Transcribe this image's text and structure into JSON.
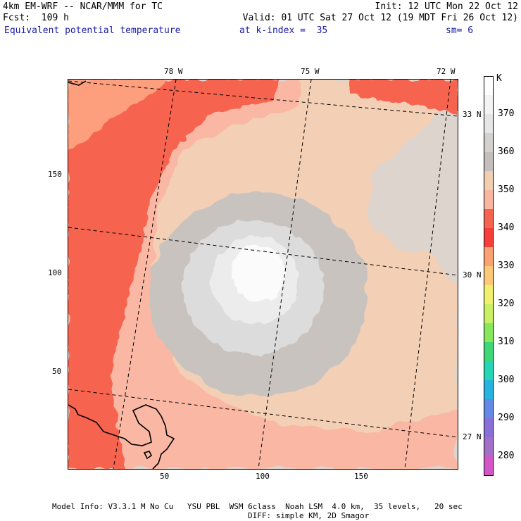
{
  "header": {
    "line1_left": "4km EM-WRF -- NCAR/MMM for TC",
    "line1_right": "Init: 12 UTC Mon 22 Oct 12",
    "line2_left": "Fcst:  109 h",
    "line2_right": "Valid: 01 UTC Sat 27 Oct 12 (19 MDT Fri 26 Oct 12)",
    "field_name": "Equivalent potential temperature",
    "level_text": "at k-index =  35",
    "smooth_text": "sm= 6"
  },
  "map": {
    "top_lon_labels": [
      "78 W",
      "75 W",
      "72 W"
    ],
    "right_lat_labels": [
      "33 N",
      "30 N",
      "27 N"
    ],
    "left_axis_ticks": [
      "150",
      "100",
      "50"
    ],
    "bottom_axis_ticks": [
      "50",
      "100",
      "150"
    ],
    "colors": {
      "c335": "#fd9e7c",
      "c340": "#f6634f",
      "c345": "#fab7a3",
      "c350": "#f3cfb6",
      "c355": "#ddd4cd",
      "c360": "#c9c3c0",
      "c365": "#dcdcdc",
      "c370": "#ececec",
      "c375": "#fbfbfb"
    }
  },
  "colorbar": {
    "unit": "K",
    "labels": [
      "370",
      "360",
      "350",
      "340",
      "330",
      "320",
      "310",
      "300",
      "290",
      "280"
    ],
    "colors": [
      "#ffffff",
      "#f4f4f4",
      "#e6e6e6",
      "#d3d0ce",
      "#c4bebc",
      "#f1cdb2",
      "#fab6a0",
      "#f4644e",
      "#f63f3a",
      "#fca173",
      "#fdc978",
      "#f1ef6e",
      "#c9ef63",
      "#88e85c",
      "#3fd877",
      "#26d5b6",
      "#27b2df",
      "#6589e6",
      "#8970d8",
      "#a26fc9",
      "#d455c8"
    ]
  },
  "footer": {
    "line1": "Model Info: V3.3.1 M No Cu   YSU PBL  WSM 6class  Noah LSM  4.0 km,  35 levels,   20 sec",
    "line2": "DIFF: simple KM, 2D Smagor"
  }
}
